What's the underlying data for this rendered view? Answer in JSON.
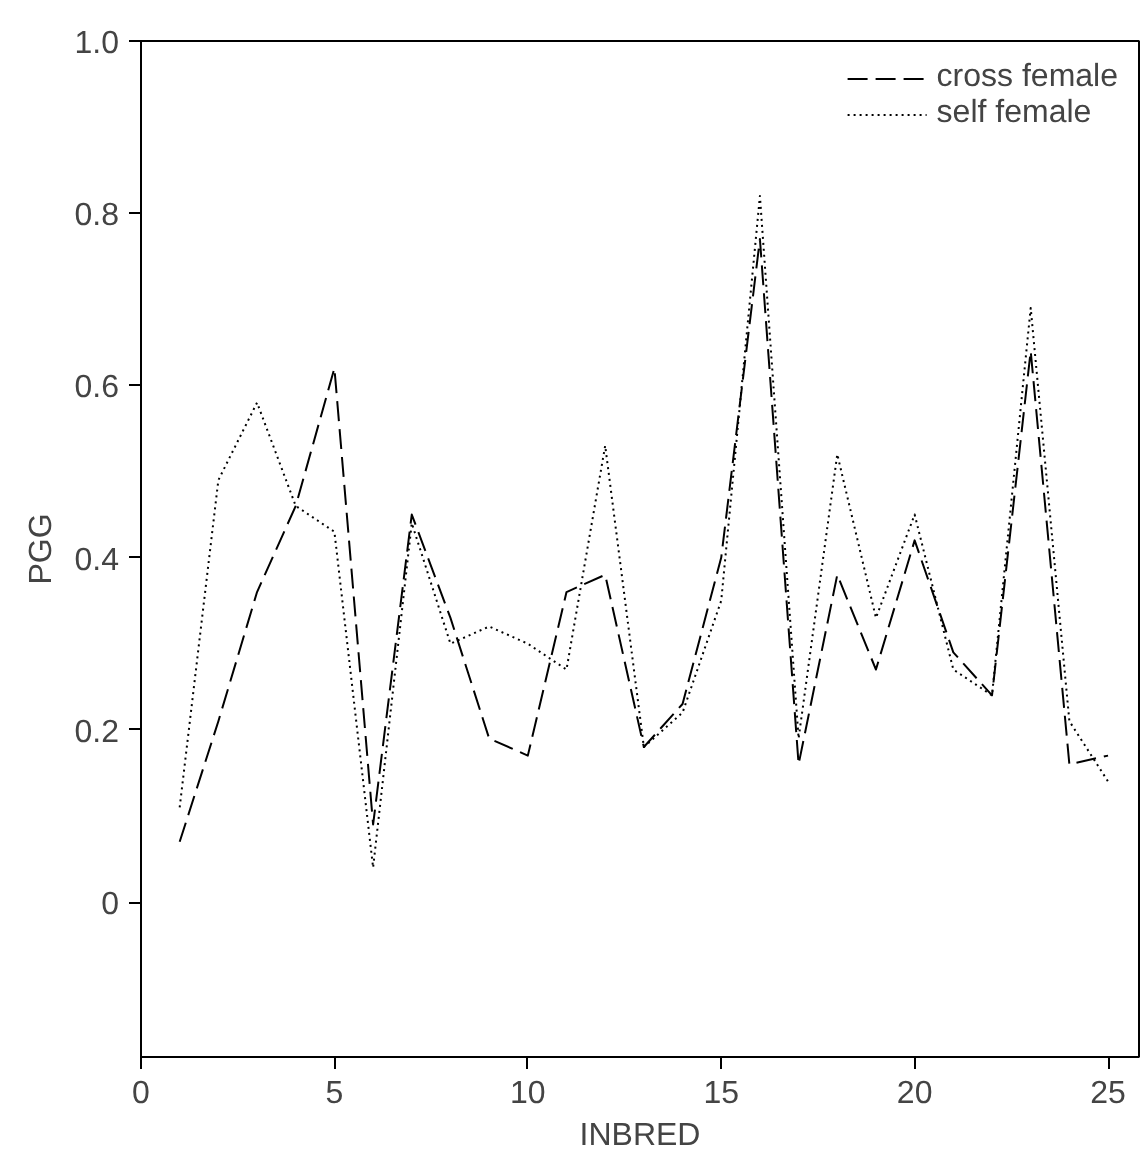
{
  "chart_data": {
    "type": "line",
    "xlabel": "INBRED",
    "ylabel": "PGG",
    "x": [
      1,
      2,
      3,
      4,
      5,
      6,
      7,
      8,
      9,
      10,
      11,
      12,
      13,
      14,
      15,
      16,
      17,
      18,
      19,
      20,
      21,
      22,
      23,
      24,
      25
    ],
    "series": [
      {
        "name": "cross female",
        "color": "#000000",
        "line_style": "dashed",
        "values": [
          0.07,
          0.21,
          0.36,
          0.46,
          0.62,
          0.09,
          0.45,
          0.33,
          0.19,
          0.17,
          0.36,
          0.38,
          0.18,
          0.23,
          0.4,
          0.77,
          0.16,
          0.38,
          0.27,
          0.42,
          0.29,
          0.24,
          0.64,
          0.16,
          0.17
        ]
      },
      {
        "name": "self female",
        "color": "#000000",
        "line_style": "dotted",
        "values": [
          0.11,
          0.49,
          0.58,
          0.46,
          0.43,
          0.04,
          0.44,
          0.3,
          0.32,
          0.3,
          0.27,
          0.53,
          0.18,
          0.22,
          0.35,
          0.82,
          0.19,
          0.52,
          0.33,
          0.45,
          0.27,
          0.24,
          0.69,
          0.21,
          0.14
        ]
      }
    ],
    "xlim": [
      0,
      25.8
    ],
    "ylim": [
      -0.18,
      1.0
    ],
    "xticks": [
      0,
      5,
      10,
      15,
      20,
      25
    ],
    "yticks": [
      0,
      0.2,
      0.4,
      0.6,
      0.8,
      {
        "value": 1.0,
        "label": "1.0"
      }
    ],
    "grid": false,
    "legend": "top right",
    "marker": "none"
  }
}
